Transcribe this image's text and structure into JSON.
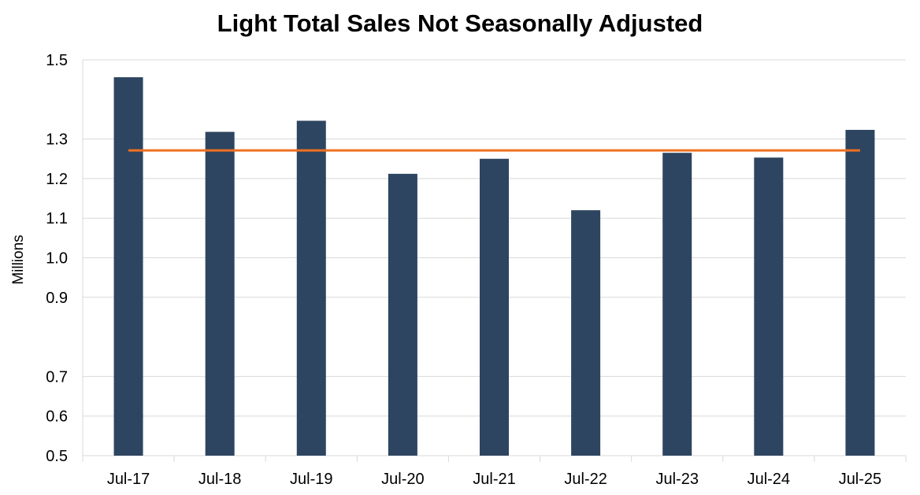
{
  "chart_data": {
    "type": "bar",
    "title": "Light Total Sales Not Seasonally Adjusted",
    "xlabel": "",
    "ylabel": "Millions",
    "categories": [
      "Jul-17",
      "Jul-18",
      "Jul-19",
      "Jul-20",
      "Jul-21",
      "Jul-22",
      "Jul-23",
      "Jul-24",
      "Jul-25"
    ],
    "values": [
      1.456,
      1.318,
      1.346,
      1.212,
      1.25,
      1.12,
      1.265,
      1.253,
      1.323
    ],
    "reference_line": 1.271,
    "ylim": [
      0.5,
      1.5
    ],
    "yticks": [
      "0.5",
      "0.6",
      "0.7",
      "0.9",
      "1.0",
      "1.1",
      "1.2",
      "1.3",
      "1.5"
    ],
    "grid": true,
    "bar_color": "#2d4560",
    "line_color": "#f07020",
    "grid_color": "#d9d9d9"
  }
}
